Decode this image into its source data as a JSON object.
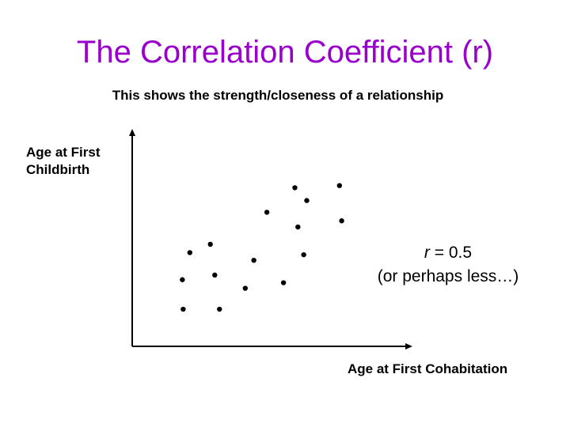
{
  "slide": {
    "title": "The Correlation Coefficient (r)",
    "subtitle": "This shows the strength/closeness of a relationship",
    "title_color": "#9900cc"
  },
  "chart_data": {
    "type": "scatter",
    "xlabel": "Age at First Cohabitation",
    "ylabel_line1": "Age at First",
    "ylabel_line2": "Childbirth",
    "xlim": [
      0,
      100
    ],
    "ylim": [
      0,
      100
    ],
    "grid": false,
    "points": [
      {
        "x": 18.4,
        "y": 17.4
      },
      {
        "x": 31.5,
        "y": 17.4
      },
      {
        "x": 18.1,
        "y": 31.2
      },
      {
        "x": 29.8,
        "y": 33.4
      },
      {
        "x": 40.8,
        "y": 27.2
      },
      {
        "x": 54.6,
        "y": 29.8
      },
      {
        "x": 20.8,
        "y": 43.9
      },
      {
        "x": 28.2,
        "y": 47.8
      },
      {
        "x": 43.9,
        "y": 40.3
      },
      {
        "x": 61.9,
        "y": 42.9
      },
      {
        "x": 59.8,
        "y": 55.9
      },
      {
        "x": 75.6,
        "y": 58.8
      },
      {
        "x": 48.6,
        "y": 62.8
      },
      {
        "x": 63.0,
        "y": 68.3
      },
      {
        "x": 58.7,
        "y": 74.3
      },
      {
        "x": 74.8,
        "y": 75.3
      }
    ],
    "annotation": {
      "r_symbol": "r",
      "r_value": " = 0.5",
      "note": "(or perhaps less…)"
    }
  }
}
